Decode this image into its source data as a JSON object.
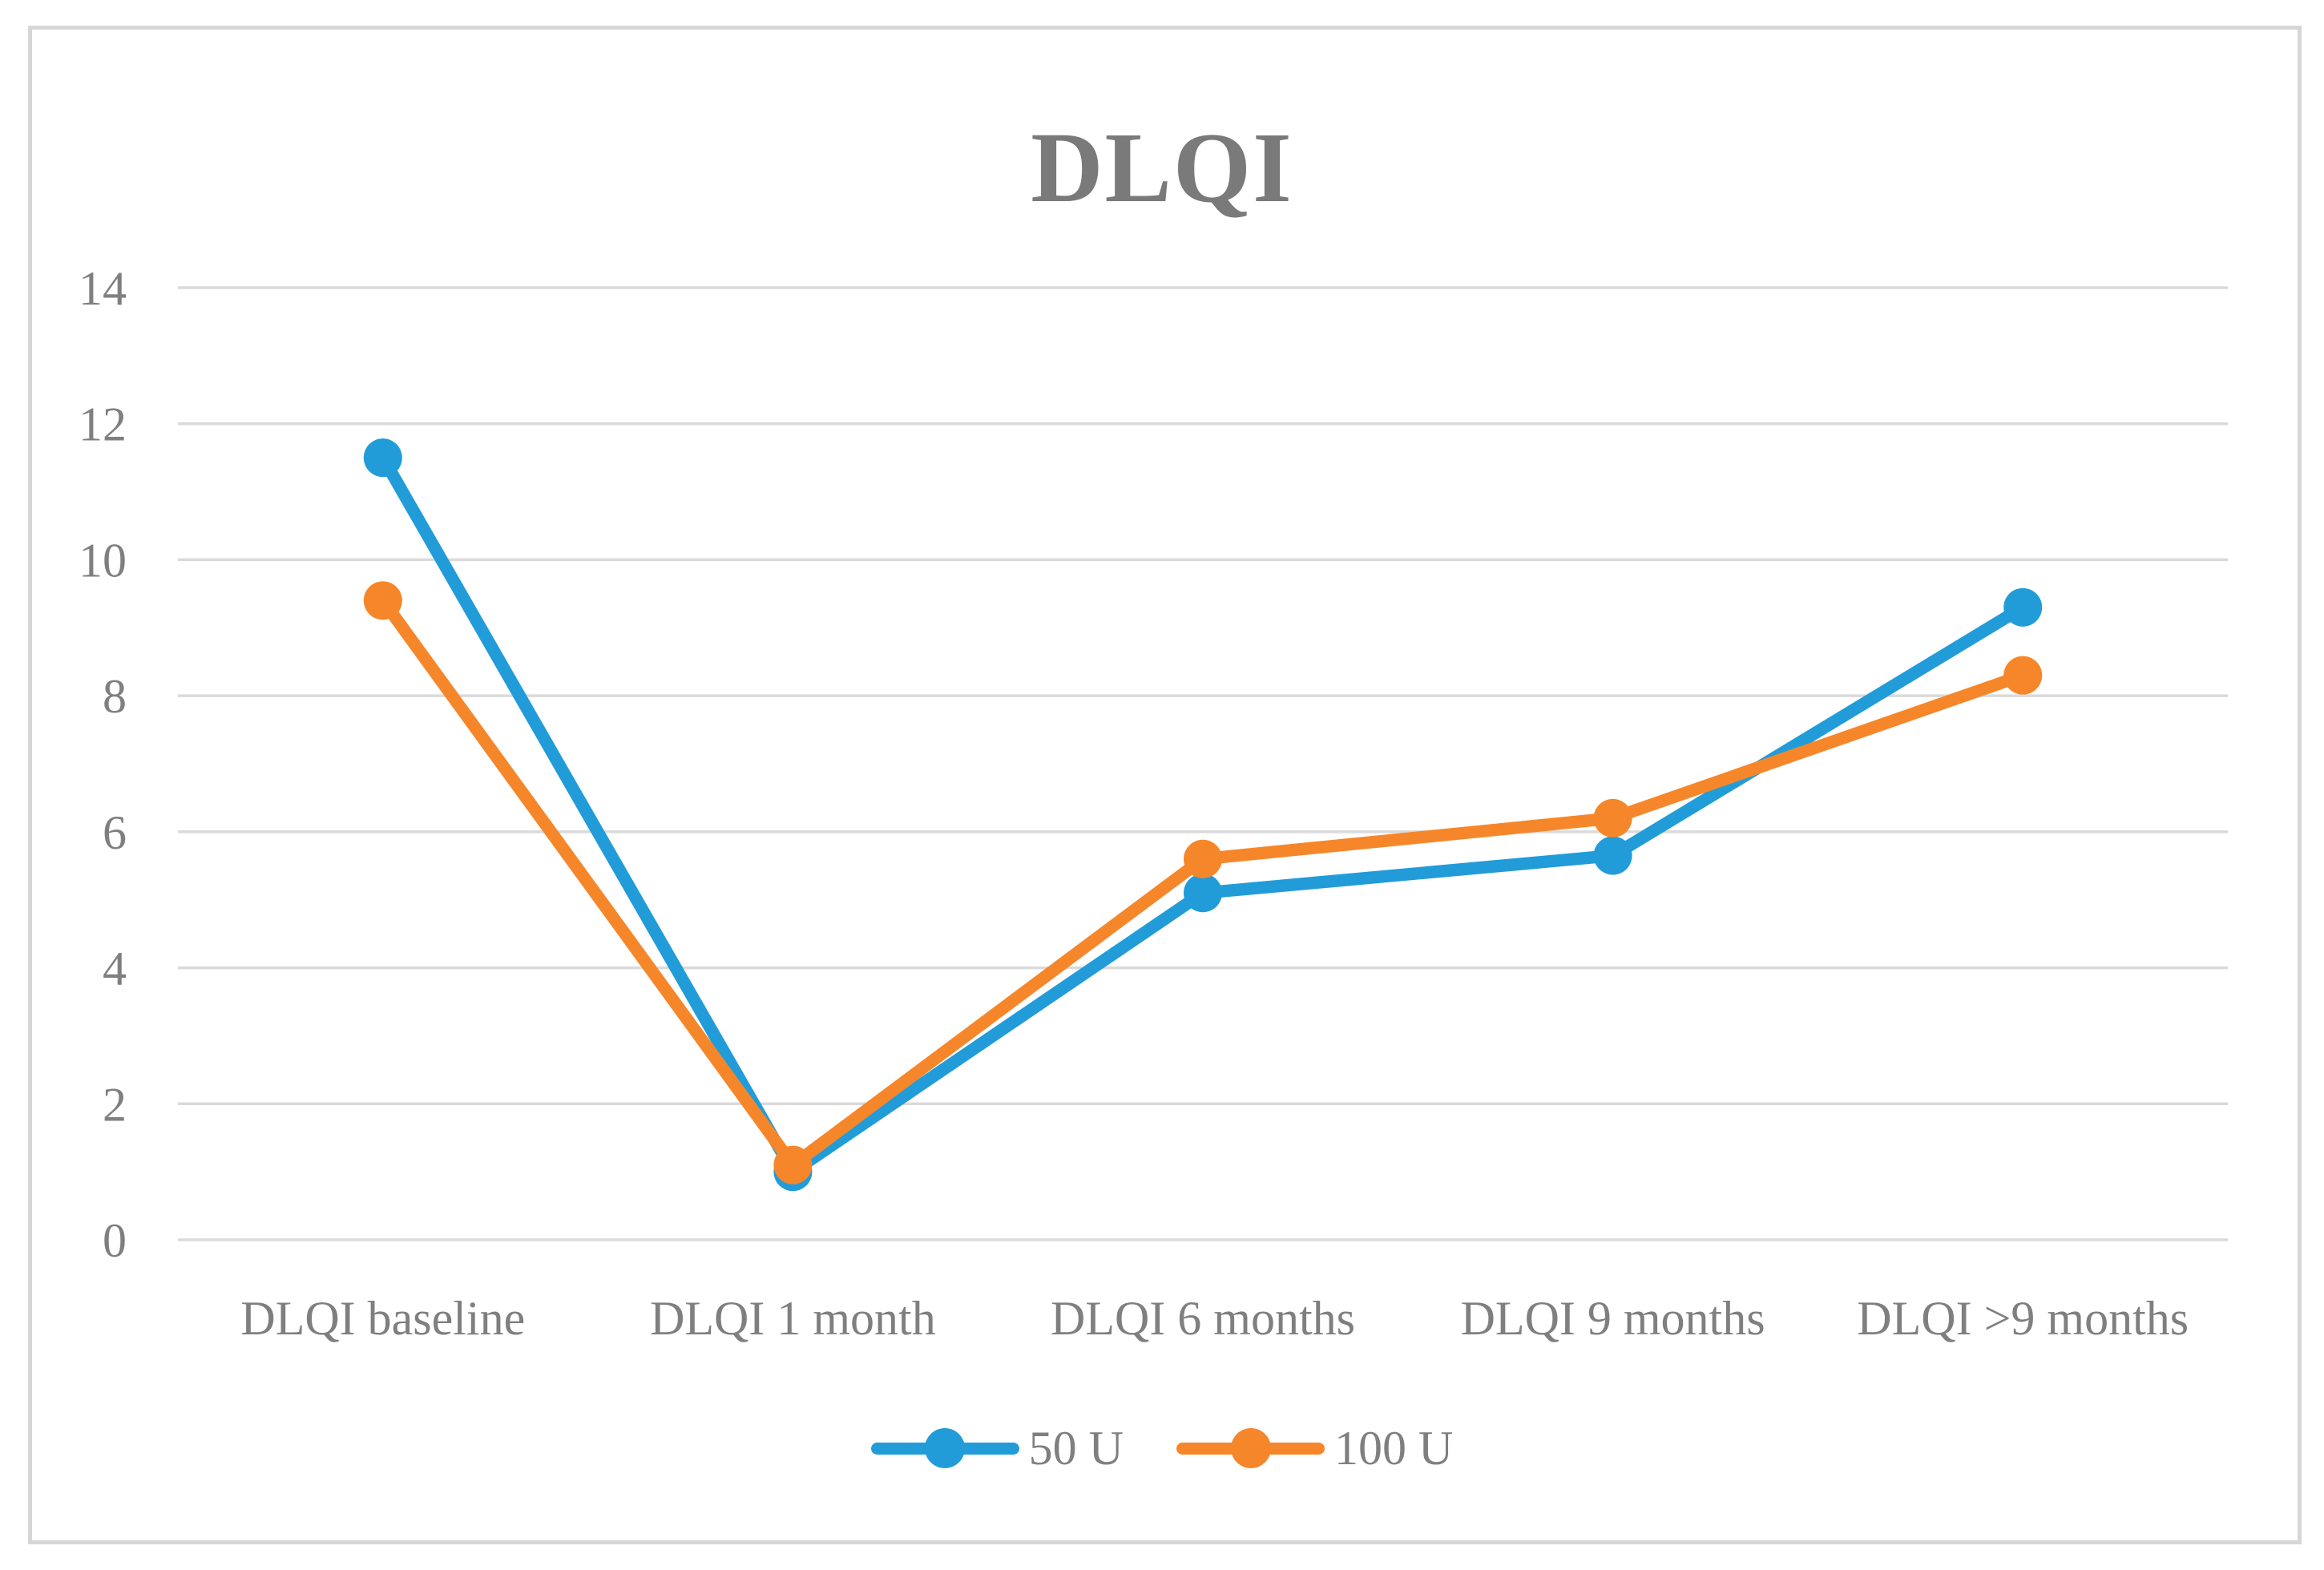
{
  "chart_data": {
    "type": "line",
    "title": "DLQI",
    "categories": [
      "DLQI baseline",
      "DLQI 1 month",
      "DLQI 6 months",
      "DLQI 9 months",
      "DLQI >9 months"
    ],
    "series": [
      {
        "name": "50 U",
        "color": "#219CD8",
        "values": [
          11.5,
          1.0,
          5.1,
          5.65,
          9.3
        ]
      },
      {
        "name": "100 U",
        "color": "#F6862A",
        "values": [
          9.4,
          1.1,
          5.6,
          6.2,
          8.3
        ]
      }
    ],
    "xlabel": "",
    "ylabel": "",
    "ylim": [
      0,
      14
    ],
    "yticks": [
      0,
      2,
      4,
      6,
      8,
      10,
      12,
      14
    ],
    "grid": "horizontal-only",
    "legend_position": "bottom-center",
    "marker": "circle",
    "styles": {
      "axis_text_color": "#7F7F7F",
      "title_color": "#7A7A7A",
      "gridline_color": "#DADADA",
      "border_color": "#D6D6D6",
      "background": "#FFFFFF"
    }
  }
}
